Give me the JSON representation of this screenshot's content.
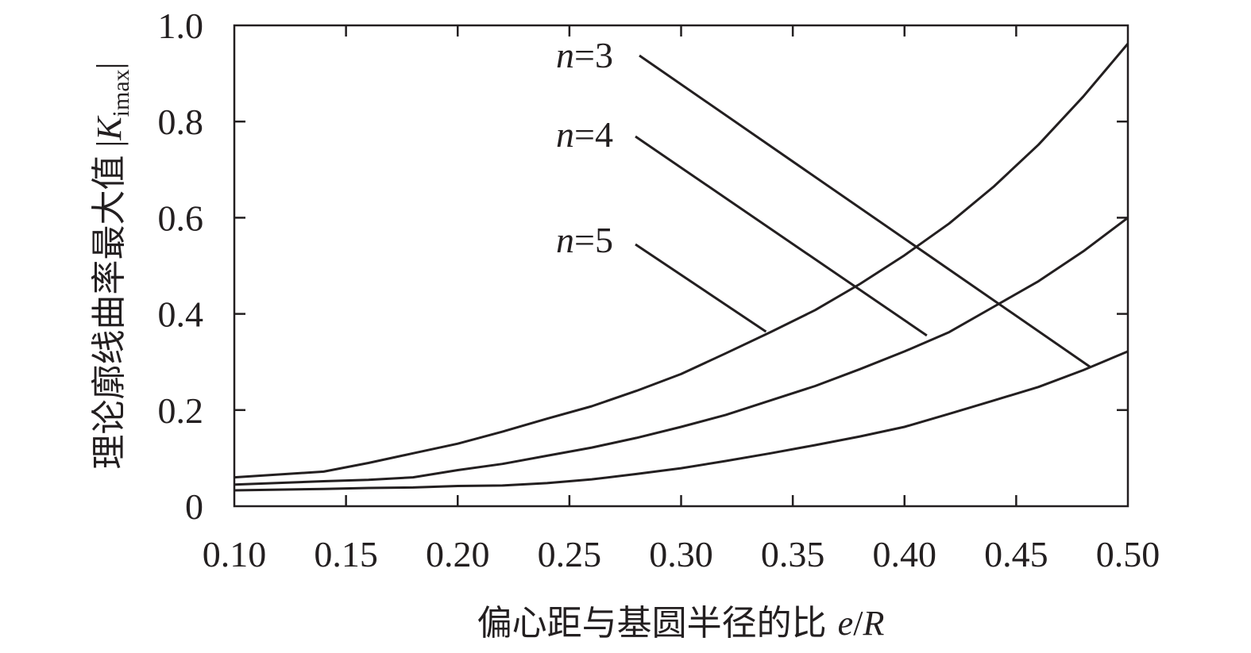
{
  "chart_data": {
    "type": "line",
    "xlabel": {
      "text": "偏心距与基圆半径的比",
      "symbol_e": "e",
      "symbol_slash": "/",
      "symbol_R": "R"
    },
    "ylabel": {
      "text": "理论廓线曲率最大值",
      "bar_left": "|",
      "symbol_K": "K",
      "subscript": "imax",
      "bar_right": "|"
    },
    "xlim": [
      0.1,
      0.5
    ],
    "ylim": [
      0,
      1.0
    ],
    "x_ticks": [
      0.1,
      0.15,
      0.2,
      0.25,
      0.3,
      0.35,
      0.4,
      0.45,
      0.5
    ],
    "x_tick_labels": [
      "0.10",
      "0.15",
      "0.20",
      "0.25",
      "0.30",
      "0.35",
      "0.40",
      "0.45",
      "0.50"
    ],
    "y_ticks": [
      0,
      0.2,
      0.4,
      0.6,
      0.8,
      1.0
    ],
    "y_tick_labels": [
      "0",
      "0.2",
      "0.4",
      "0.6",
      "0.8",
      "1.0"
    ],
    "grid": false,
    "legend": "callout-labels",
    "series": [
      {
        "name": "n=3",
        "label_var": "n",
        "label_eq": "=3",
        "x": [
          0.1,
          0.14,
          0.16,
          0.18,
          0.2,
          0.22,
          0.24,
          0.26,
          0.28,
          0.3,
          0.32,
          0.34,
          0.36,
          0.38,
          0.4,
          0.42,
          0.44,
          0.46,
          0.48,
          0.5
        ],
        "y": [
          0.06,
          0.072,
          0.09,
          0.11,
          0.13,
          0.155,
          0.182,
          0.208,
          0.24,
          0.275,
          0.318,
          0.362,
          0.408,
          0.462,
          0.522,
          0.588,
          0.665,
          0.752,
          0.852,
          0.962
        ],
        "label_anchor_x": 0.483,
        "label_anchor_y": 0.29
      },
      {
        "name": "n=4",
        "label_var": "n",
        "label_eq": "=4",
        "x": [
          0.1,
          0.14,
          0.16,
          0.18,
          0.2,
          0.22,
          0.24,
          0.26,
          0.28,
          0.3,
          0.32,
          0.34,
          0.36,
          0.38,
          0.4,
          0.42,
          0.44,
          0.46,
          0.48,
          0.5
        ],
        "y": [
          0.045,
          0.052,
          0.055,
          0.06,
          0.075,
          0.088,
          0.105,
          0.122,
          0.142,
          0.165,
          0.19,
          0.22,
          0.25,
          0.285,
          0.322,
          0.362,
          0.415,
          0.468,
          0.53,
          0.6
        ],
        "label_anchor_x": 0.41,
        "label_anchor_y": 0.355
      },
      {
        "name": "n=5",
        "label_var": "n",
        "label_eq": "=5",
        "x": [
          0.1,
          0.14,
          0.16,
          0.18,
          0.2,
          0.22,
          0.24,
          0.26,
          0.28,
          0.3,
          0.32,
          0.34,
          0.36,
          0.38,
          0.4,
          0.42,
          0.44,
          0.46,
          0.48,
          0.5
        ],
        "y": [
          0.033,
          0.036,
          0.038,
          0.039,
          0.042,
          0.043,
          0.048,
          0.056,
          0.067,
          0.079,
          0.094,
          0.11,
          0.127,
          0.145,
          0.165,
          0.192,
          0.22,
          0.248,
          0.283,
          0.322
        ],
        "label_anchor_x": 0.338,
        "label_anchor_y": 0.363
      }
    ]
  }
}
